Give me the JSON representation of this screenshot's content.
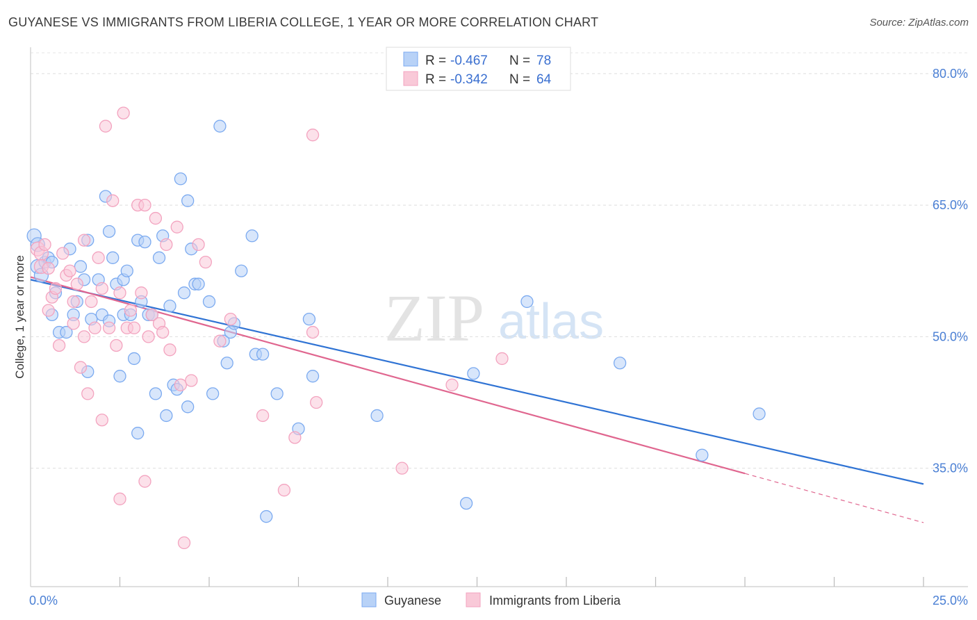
{
  "header": {
    "title": "GUYANESE VS IMMIGRANTS FROM LIBERIA COLLEGE, 1 YEAR OR MORE CORRELATION CHART",
    "source": "Source: ZipAtlas.com"
  },
  "watermark": {
    "zip": "ZIP",
    "atlas": "atlas"
  },
  "stats_legend": [
    {
      "r_label": "R = ",
      "r_value": "-0.467",
      "n_label": "N = ",
      "n_value": "78"
    },
    {
      "r_label": "R = ",
      "r_value": "-0.342",
      "n_label": "N = ",
      "n_value": "64"
    }
  ],
  "bottom_legend": [
    "Guyanese",
    "Immigrants from Liberia"
  ],
  "chart_data": {
    "type": "scatter",
    "title": "GUYANESE VS IMMIGRANTS FROM LIBERIA COLLEGE, 1 YEAR OR MORE CORRELATION CHART",
    "xlabel": "",
    "ylabel": "College, 1 year or more",
    "xlim": [
      0,
      25
    ],
    "ylim": [
      21.5,
      83
    ],
    "x_tick_labels": [
      {
        "value": 0,
        "label": "0.0%"
      },
      {
        "value": 25,
        "label": "25.0%"
      }
    ],
    "x_minor_ticks": [
      2.5,
      5,
      7.5,
      10,
      12.5,
      15,
      17.5,
      20,
      22.5,
      25
    ],
    "y_ticks": [
      {
        "value": 80,
        "label": "80.0%"
      },
      {
        "value": 65,
        "label": "65.0%"
      },
      {
        "value": 50,
        "label": "50.0%"
      },
      {
        "value": 35,
        "label": "35.0%"
      }
    ],
    "grid": true,
    "legend": "top-center",
    "series": [
      {
        "name": "Guyanese",
        "color": "#7baaf0",
        "fill": "#b8d2f7",
        "line_color": "#2f73d4",
        "r": -0.467,
        "n": 78,
        "trend": {
          "x0": 0,
          "y0": 56.5,
          "x1": 25,
          "y1": 33.2,
          "solid_to": 25
        },
        "points": [
          [
            0.1,
            61.5
          ],
          [
            0.2,
            60.5
          ],
          [
            0.2,
            58
          ],
          [
            0.3,
            57
          ],
          [
            0.4,
            58.5
          ],
          [
            0.5,
            59
          ],
          [
            0.6,
            58.5
          ],
          [
            0.7,
            55
          ],
          [
            0.6,
            52.5
          ],
          [
            0.8,
            50.5
          ],
          [
            1.0,
            50.5
          ],
          [
            1.1,
            60
          ],
          [
            1.2,
            52.5
          ],
          [
            1.3,
            54
          ],
          [
            1.4,
            58
          ],
          [
            1.5,
            56.5
          ],
          [
            1.6,
            61
          ],
          [
            1.6,
            46
          ],
          [
            1.7,
            52
          ],
          [
            1.9,
            56.5
          ],
          [
            2.0,
            52.5
          ],
          [
            2.1,
            66
          ],
          [
            2.2,
            51.8
          ],
          [
            2.2,
            62
          ],
          [
            2.3,
            59
          ],
          [
            2.4,
            56
          ],
          [
            2.5,
            45.5
          ],
          [
            2.6,
            56.5
          ],
          [
            2.6,
            52.5
          ],
          [
            2.7,
            57.5
          ],
          [
            2.8,
            52.5
          ],
          [
            2.9,
            47.5
          ],
          [
            3.0,
            39
          ],
          [
            3.0,
            61
          ],
          [
            3.1,
            54
          ],
          [
            3.2,
            60.8
          ],
          [
            3.3,
            52.5
          ],
          [
            3.4,
            52.5
          ],
          [
            3.5,
            43.5
          ],
          [
            3.6,
            59
          ],
          [
            3.7,
            61.5
          ],
          [
            3.8,
            41
          ],
          [
            3.9,
            53.5
          ],
          [
            4.0,
            44.5
          ],
          [
            4.1,
            44
          ],
          [
            4.2,
            68
          ],
          [
            4.3,
            55
          ],
          [
            4.4,
            65.5
          ],
          [
            4.4,
            42
          ],
          [
            4.5,
            60
          ],
          [
            4.6,
            56
          ],
          [
            4.7,
            56
          ],
          [
            5.0,
            54
          ],
          [
            5.1,
            43.5
          ],
          [
            5.3,
            74
          ],
          [
            5.4,
            49.5
          ],
          [
            5.5,
            47
          ],
          [
            5.6,
            50.5
          ],
          [
            5.7,
            51.5
          ],
          [
            5.9,
            57.5
          ],
          [
            6.2,
            61.5
          ],
          [
            6.3,
            48
          ],
          [
            6.5,
            48
          ],
          [
            6.6,
            29.5
          ],
          [
            6.9,
            43.5
          ],
          [
            7.5,
            39.5
          ],
          [
            7.8,
            52
          ],
          [
            7.9,
            45.5
          ],
          [
            9.7,
            41
          ],
          [
            12.2,
            31
          ],
          [
            12.4,
            45.8
          ],
          [
            13.9,
            54
          ],
          [
            16.5,
            47
          ],
          [
            20.4,
            41.2
          ],
          [
            18.8,
            36.5
          ]
        ]
      },
      {
        "name": "Immigrants from Liberia",
        "color": "#f3a3bf",
        "fill": "#f9c9d8",
        "line_color": "#e0668f",
        "r": -0.342,
        "n": 64,
        "trend": {
          "x0": 0,
          "y0": 56.8,
          "x1": 25,
          "y1": 28.8,
          "solid_to": 20
        },
        "points": [
          [
            0.2,
            60
          ],
          [
            0.3,
            59.5
          ],
          [
            0.3,
            58
          ],
          [
            0.4,
            60.5
          ],
          [
            0.5,
            57.8
          ],
          [
            0.5,
            53
          ],
          [
            0.6,
            54.5
          ],
          [
            0.7,
            55.5
          ],
          [
            0.8,
            49
          ],
          [
            0.9,
            59.5
          ],
          [
            1.0,
            57
          ],
          [
            1.1,
            57.5
          ],
          [
            1.2,
            54
          ],
          [
            1.2,
            51.5
          ],
          [
            1.3,
            56
          ],
          [
            1.4,
            46.5
          ],
          [
            1.5,
            61
          ],
          [
            1.5,
            50
          ],
          [
            1.6,
            43.5
          ],
          [
            1.7,
            54
          ],
          [
            1.8,
            51
          ],
          [
            1.9,
            59
          ],
          [
            2.0,
            40.5
          ],
          [
            2.0,
            55.5
          ],
          [
            2.1,
            74
          ],
          [
            2.2,
            51
          ],
          [
            2.3,
            65.5
          ],
          [
            2.4,
            49
          ],
          [
            2.5,
            55
          ],
          [
            2.5,
            31.5
          ],
          [
            2.6,
            75.5
          ],
          [
            2.7,
            51
          ],
          [
            2.8,
            53
          ],
          [
            2.9,
            51
          ],
          [
            3.0,
            65
          ],
          [
            3.1,
            55
          ],
          [
            3.2,
            33.5
          ],
          [
            3.2,
            65
          ],
          [
            3.3,
            50
          ],
          [
            3.4,
            52.5
          ],
          [
            3.5,
            63.5
          ],
          [
            3.6,
            51.5
          ],
          [
            3.7,
            50.5
          ],
          [
            3.8,
            60.5
          ],
          [
            3.9,
            48.5
          ],
          [
            4.1,
            62.5
          ],
          [
            4.2,
            44.5
          ],
          [
            4.3,
            26.5
          ],
          [
            4.5,
            45
          ],
          [
            4.7,
            60.5
          ],
          [
            4.9,
            58.5
          ],
          [
            5.3,
            49.5
          ],
          [
            5.6,
            52
          ],
          [
            6.5,
            41
          ],
          [
            7.1,
            32.5
          ],
          [
            7.4,
            38.5
          ],
          [
            7.9,
            73
          ],
          [
            7.9,
            50.5
          ],
          [
            8.0,
            42.5
          ],
          [
            10.4,
            35
          ],
          [
            11.8,
            44.5
          ],
          [
            13.2,
            47.5
          ]
        ]
      }
    ]
  }
}
